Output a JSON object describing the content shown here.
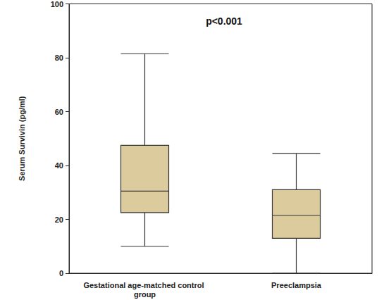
{
  "chart_data": {
    "type": "boxplot",
    "annotation": "p<0.001",
    "ylabel": "Serum Survivin (pg/ml)",
    "categories": [
      "Gestational age-matched control group",
      "Preeclampsia"
    ],
    "values": [
      [
        10,
        22.5,
        30.5,
        47.5,
        81.5
      ],
      [
        0,
        13,
        21.5,
        31,
        44.5
      ]
    ],
    "color": "#dccb9c",
    "ylim": [
      0,
      100
    ],
    "yticks": [
      0,
      20,
      40,
      60,
      80,
      100
    ],
    "grid": false
  }
}
